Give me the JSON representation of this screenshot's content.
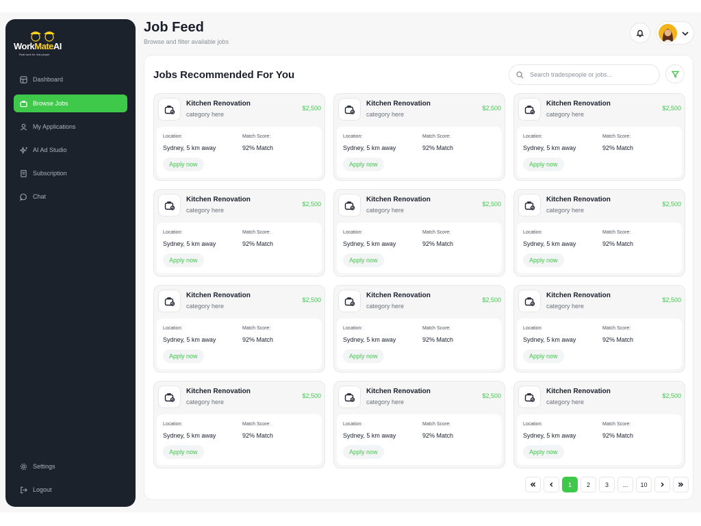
{
  "brand": {
    "name_part1": "Work",
    "name_part2": "Mate",
    "name_part3": "AI",
    "tagline": "Real work for real people"
  },
  "nav": {
    "items": [
      {
        "label": "Dashboard",
        "icon": "dashboard-icon"
      },
      {
        "label": "Browse Jobs",
        "icon": "briefcase-icon",
        "active": true
      },
      {
        "label": "My Applications",
        "icon": "user-icon"
      },
      {
        "label": "AI Ad Studio",
        "icon": "sparkle-icon"
      },
      {
        "label": "Subscription",
        "icon": "receipt-icon"
      },
      {
        "label": "Chat",
        "icon": "chat-icon"
      }
    ],
    "bottom": [
      {
        "label": "Settings",
        "icon": "gear-icon"
      },
      {
        "label": "Logout",
        "icon": "logout-icon"
      }
    ]
  },
  "header": {
    "title": "Job Feed",
    "subtitle": "Browse and filter available jobs"
  },
  "main": {
    "section_title": "Jobs Recommended For You",
    "search_placeholder": "Search tradespeople or jobs...",
    "card_labels": {
      "location": "Location:",
      "match": "Match Score:",
      "apply": "Apply now"
    },
    "jobs": [
      {
        "title": "Kitchen Renovation",
        "category": "category here",
        "price": "$2,500",
        "location": "Sydney, 5 km away",
        "match": "92% Match"
      },
      {
        "title": "Kitchen Renovation",
        "category": "category here",
        "price": "$2,500",
        "location": "Sydney, 5 km away",
        "match": "92% Match"
      },
      {
        "title": "Kitchen Renovation",
        "category": "category here",
        "price": "$2,500",
        "location": "Sydney, 5 km away",
        "match": "92% Match"
      },
      {
        "title": "Kitchen Renovation",
        "category": "category here",
        "price": "$2,500",
        "location": "Sydney, 5 km away",
        "match": "92% Match"
      },
      {
        "title": "Kitchen Renovation",
        "category": "category here",
        "price": "$2,500",
        "location": "Sydney, 5 km away",
        "match": "92% Match"
      },
      {
        "title": "Kitchen Renovation",
        "category": "category here",
        "price": "$2,500",
        "location": "Sydney, 5 km away",
        "match": "92% Match"
      },
      {
        "title": "Kitchen Renovation",
        "category": "category here",
        "price": "$2,500",
        "location": "Sydney, 5 km away",
        "match": "92% Match"
      },
      {
        "title": "Kitchen Renovation",
        "category": "category here",
        "price": "$2,500",
        "location": "Sydney, 5 km away",
        "match": "92% Match"
      },
      {
        "title": "Kitchen Renovation",
        "category": "category here",
        "price": "$2,500",
        "location": "Sydney, 5 km away",
        "match": "92% Match"
      },
      {
        "title": "Kitchen Renovation",
        "category": "category here",
        "price": "$2,500",
        "location": "Sydney, 5 km away",
        "match": "92% Match"
      },
      {
        "title": "Kitchen Renovation",
        "category": "category here",
        "price": "$2,500",
        "location": "Sydney, 5 km away",
        "match": "92% Match"
      },
      {
        "title": "Kitchen Renovation",
        "category": "category here",
        "price": "$2,500",
        "location": "Sydney, 5 km away",
        "match": "92% Match"
      }
    ]
  },
  "pagination": {
    "pages": [
      "1",
      "2",
      "3",
      "...",
      "10"
    ],
    "current": "1"
  },
  "colors": {
    "accent": "#3fc94a",
    "sidebar": "#1b222b",
    "brand_yellow": "#ffd21f"
  }
}
